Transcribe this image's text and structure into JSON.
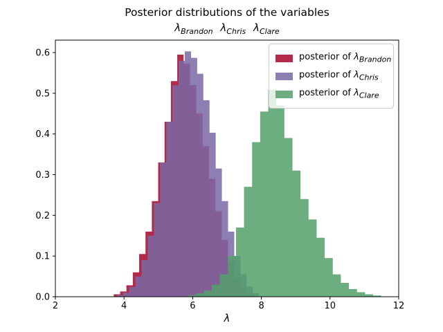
{
  "figure": {
    "title": "Posterior distributions of the variables",
    "subtitle_vars": [
      {
        "symbol": "λ",
        "sub": "Brandon"
      },
      {
        "symbol": "λ",
        "sub": "Chris"
      },
      {
        "symbol": "λ",
        "sub": "Clare"
      }
    ],
    "xlabel": "λ"
  },
  "legend": {
    "position": "upper right",
    "entries": [
      {
        "prefix": "posterior of ",
        "symbol": "λ",
        "sub": "Brandon",
        "color_hex": "#A60628",
        "alpha": 0.85
      },
      {
        "prefix": "posterior of ",
        "symbol": "λ",
        "sub": "Chris",
        "color_hex": "#7A68A6",
        "alpha": 0.85
      },
      {
        "prefix": "posterior of ",
        "symbol": "λ",
        "sub": "Clare",
        "color_hex": "#52A06A",
        "alpha": 0.85
      }
    ]
  },
  "chart_data": {
    "type": "bar",
    "subtype": "histogram-stepfilled-density",
    "title": "Posterior distributions of the variables",
    "subtitle": "λ_Brandon λ_Chris λ_Clare",
    "xlabel": "λ",
    "ylabel": "",
    "xlim": [
      2,
      12
    ],
    "ylim": [
      0,
      0.6306
    ],
    "grid": false,
    "x_ticks": {
      "values": [
        2,
        4,
        6,
        8,
        10,
        12
      ],
      "labels": [
        "2",
        "4",
        "6",
        "8",
        "10",
        "12"
      ]
    },
    "y_ticks": {
      "values": [
        0.0,
        0.1,
        0.2,
        0.3,
        0.4,
        0.5,
        0.6
      ],
      "labels": [
        "0.0",
        "0.1",
        "0.2",
        "0.3",
        "0.4",
        "0.5",
        "0.6"
      ]
    },
    "series": [
      {
        "id": "brandon",
        "name": "posterior of λ_Brandon",
        "color_hex": "#A60628",
        "alpha": 0.85,
        "bin_start": 3.7,
        "bin_width": 0.185,
        "heights": [
          0.006,
          0.013,
          0.028,
          0.06,
          0.105,
          0.16,
          0.235,
          0.33,
          0.43,
          0.53,
          0.595,
          0.573,
          0.52,
          0.45,
          0.37,
          0.29,
          0.21,
          0.14,
          0.085,
          0.045,
          0.02,
          0.008
        ]
      },
      {
        "id": "chris",
        "name": "posterior of λ_Chris",
        "color_hex": "#7A68A6",
        "alpha": 0.85,
        "bin_start": 3.79,
        "bin_width": 0.18,
        "heights": [
          0.004,
          0.01,
          0.024,
          0.05,
          0.09,
          0.15,
          0.23,
          0.33,
          0.43,
          0.52,
          0.58,
          0.603,
          0.587,
          0.548,
          0.483,
          0.403,
          0.315,
          0.235,
          0.16,
          0.1,
          0.055,
          0.025,
          0.009
        ]
      },
      {
        "id": "clare",
        "name": "posterior of λ_Clare",
        "color_hex": "#52A06A",
        "alpha": 0.85,
        "bin_start": 5.85,
        "bin_width": 0.235,
        "heights": [
          0.004,
          0.008,
          0.015,
          0.03,
          0.055,
          0.1,
          0.17,
          0.27,
          0.38,
          0.455,
          0.508,
          0.47,
          0.39,
          0.31,
          0.24,
          0.19,
          0.145,
          0.095,
          0.055,
          0.034,
          0.019,
          0.011,
          0.006,
          0.003
        ]
      }
    ]
  }
}
